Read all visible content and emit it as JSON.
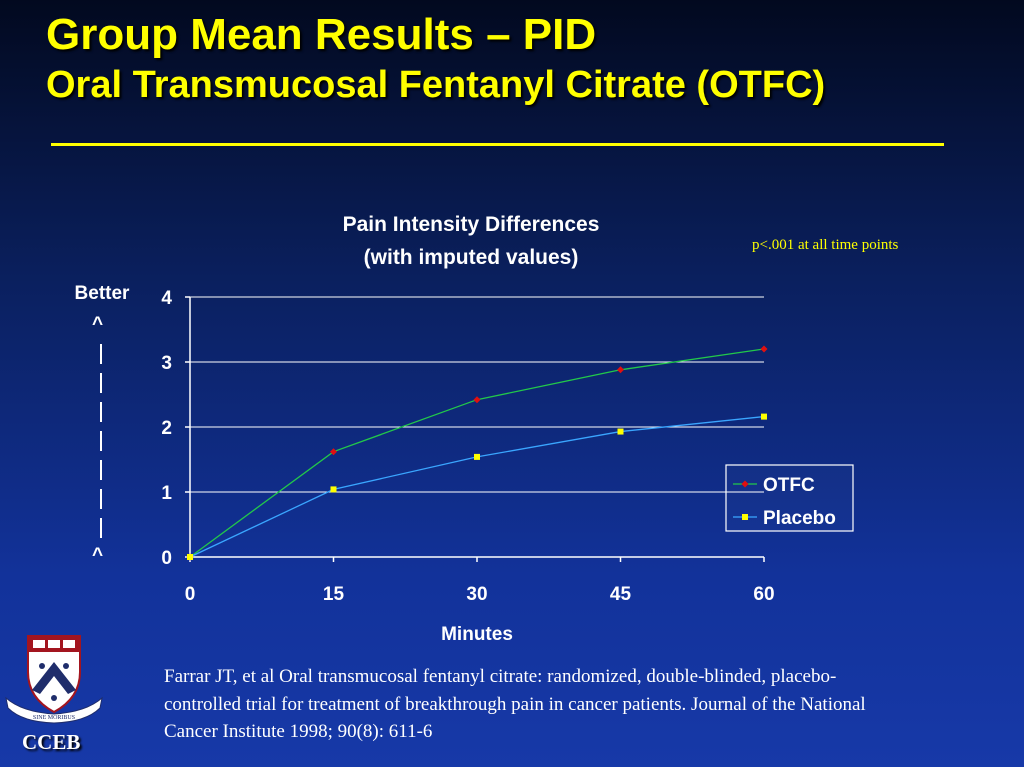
{
  "slide": {
    "title_line1": "Group Mean Results – PID",
    "title_line2": "Oral Transmucosal Fentanyl Citrate (OTFC)",
    "better_label": "Better",
    "arrow_glyph": "^",
    "p_note": "p<.001 at all time points",
    "citation": "Farrar JT, et al Oral transmucosal fentanyl citrate: randomized, double-blinded, placebo-controlled trial for treatment of breakthrough pain in cancer patients. Journal of the National Cancer Institute 1998; 90(8): 611-6",
    "footer_label": "CCEB",
    "seal_motto": "SINE MORIBUS",
    "title_color": "#ffff00",
    "seal_colors": {
      "crimson": "#a3151f",
      "navy": "#1f2d6b",
      "ribbon": "#ffffff"
    }
  },
  "chart_data": {
    "type": "line",
    "title_line1": "Pain Intensity Differences",
    "title_line2": "(with imputed values)",
    "xlabel": "Minutes",
    "ylabel": "",
    "x": [
      0,
      15,
      30,
      45,
      60
    ],
    "xticks": [
      "0",
      "15",
      "30",
      "45",
      "60"
    ],
    "yticks": [
      "0",
      "1",
      "2",
      "3",
      "4"
    ],
    "xlim": [
      0,
      60
    ],
    "ylim": [
      0,
      4
    ],
    "grid": "horizontal",
    "legend_position": "bottom-right",
    "series": [
      {
        "name": "OTFC",
        "values": [
          0,
          1.62,
          2.42,
          2.88,
          3.2
        ],
        "color": "#22c84a",
        "marker": "diamond",
        "marker_color": "#e01010"
      },
      {
        "name": "Placebo",
        "values": [
          0,
          1.04,
          1.54,
          1.93,
          2.16
        ],
        "color": "#3aa6ff",
        "marker": "square",
        "marker_color": "#ffff00"
      }
    ]
  }
}
